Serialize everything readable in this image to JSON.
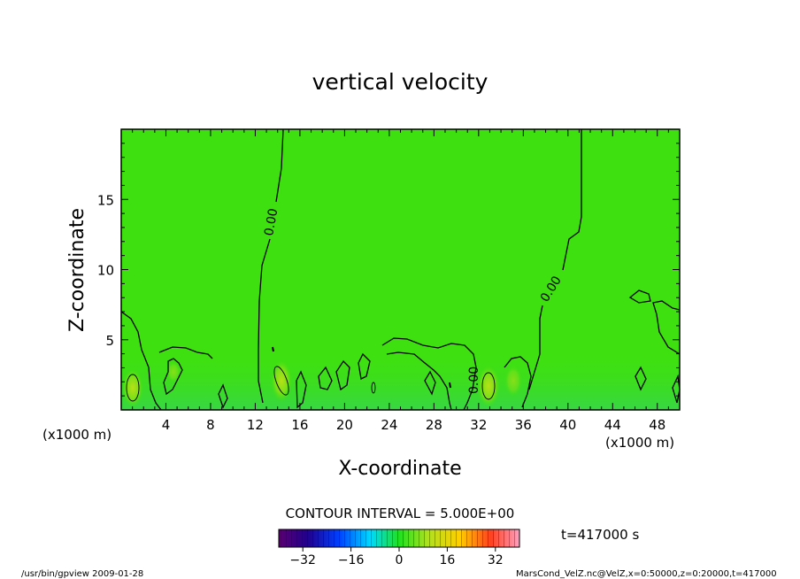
{
  "chart_data": {
    "type": "heatmap",
    "title": "vertical velocity",
    "xlabel": "X-coordinate",
    "ylabel": "Z-coordinate",
    "x_unit_left": "(x1000 m)",
    "x_unit_right": "(x1000 m)",
    "xlim": [
      0,
      50
    ],
    "ylim": [
      0,
      20
    ],
    "xticks": [
      4,
      8,
      12,
      16,
      20,
      24,
      28,
      32,
      36,
      40,
      44,
      48
    ],
    "yticks": [
      5,
      10,
      15
    ],
    "contour_interval_text": "CONTOUR INTERVAL = 5.000E+00",
    "contour_labels": [
      "0.00",
      "0.00",
      "0.00"
    ],
    "colorbar": {
      "min": -40,
      "max": 40,
      "ticks": [
        -32,
        -16,
        0,
        16,
        32
      ]
    },
    "time_text": "t=417000 s",
    "field_value_background": 0,
    "features": [
      {
        "x": 1.0,
        "y": 1.7,
        "value": 8
      },
      {
        "x": 14.2,
        "y": 2.0,
        "value": 8
      },
      {
        "x": 32.8,
        "y": 1.8,
        "value": 10
      }
    ]
  },
  "footer": {
    "left": "/usr/bin/gpview  2009-01-28",
    "right": "MarsCond_VelZ.nc@VelZ,x=0:50000,z=0:20000,t=417000"
  },
  "colors": {
    "field": "#3ee010",
    "field_low": "#39d835",
    "line": "#000000"
  }
}
